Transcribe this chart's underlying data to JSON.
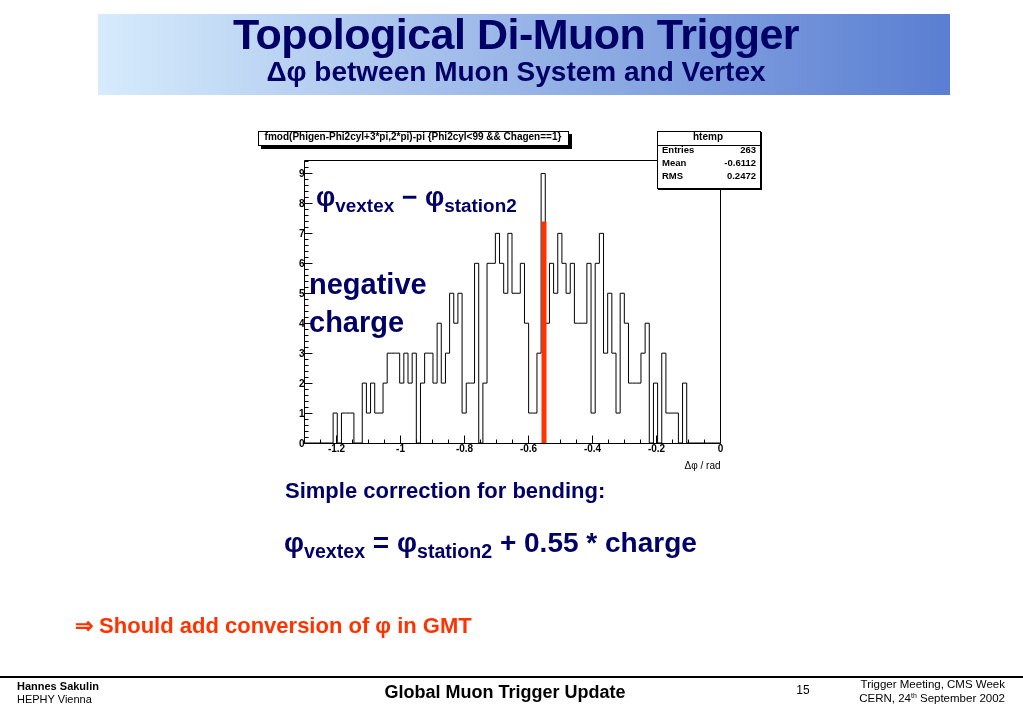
{
  "chart_data": {
    "type": "histogram",
    "title": "Topological Di-Muon Trigger",
    "subtitle": "Δφ between Muon System and Vertex",
    "xlabel": "Δφ / rad",
    "annotations": [
      "fmod(Phigen-Phi2cyl+3*pi,2*pi)-pi {Phi2cyl<99 && Chagen==1}",
      "htemp",
      "Entries",
      "263",
      "Mean",
      "-0.6112",
      "RMS",
      "0.2472",
      "φ$_{vextex}$ − φ$_{station2}$",
      "negative charge",
      "Simple correction for bending:",
      "φ$_{vextex}$ = φ$_{station2}$ + 0.55 * charge",
      "⇒ Should add conversion of φ in GMT",
      "Hannes Sakulin",
      "HEPHY Vienna",
      "Global Muon Trigger Update",
      "15",
      "Trigger Meeting, CMS Week",
      "CERN, 24$^{th}$ September 2002"
    ],
    "bins": [
      -1.3,
      -1.287,
      -1.274,
      -1.261,
      -1.248,
      -1.235,
      -1.222,
      -1.209,
      -1.196,
      -1.183,
      -1.17,
      -1.157,
      -1.144,
      -1.131,
      -1.118,
      -1.105,
      -1.092,
      -1.079,
      -1.066,
      -1.053,
      -1.04,
      -1.027,
      -1.014,
      -1.001,
      -0.988,
      -0.975,
      -0.962,
      -0.949,
      -0.936,
      -0.923,
      -0.91,
      -0.897,
      -0.884,
      -0.871,
      -0.858,
      -0.845,
      -0.832,
      -0.819,
      -0.806,
      -0.793,
      -0.78,
      -0.767,
      -0.754,
      -0.741,
      -0.728,
      -0.715,
      -0.702,
      -0.689,
      -0.676,
      -0.663,
      -0.65,
      -0.637,
      -0.624,
      -0.611,
      -0.598,
      -0.585,
      -0.572,
      -0.559,
      -0.546,
      -0.533,
      -0.52,
      -0.507,
      -0.494,
      -0.481,
      -0.468,
      -0.455,
      -0.442,
      -0.429,
      -0.416,
      -0.403,
      -0.39,
      -0.377,
      -0.364,
      -0.351,
      -0.338,
      -0.325,
      -0.312,
      -0.299,
      -0.286,
      -0.273,
      -0.26,
      -0.247,
      -0.234,
      -0.221,
      -0.208,
      -0.195,
      -0.182,
      -0.169,
      -0.156,
      -0.143,
      -0.13,
      -0.117,
      -0.104,
      -0.091,
      -0.078,
      -0.065,
      -0.052,
      -0.039,
      -0.026,
      -0.013,
      0
    ],
    "series": [
      {
        "type": "histogram",
        "color": "#000000",
        "values": [
          0,
          0,
          0,
          0,
          0,
          0,
          0,
          1,
          0,
          1,
          1,
          1,
          0,
          0,
          2,
          1,
          2,
          1,
          1,
          2,
          3,
          3,
          3,
          2,
          3,
          2,
          3,
          0,
          2,
          3,
          3,
          2,
          4,
          2,
          3,
          5,
          4,
          5,
          1,
          2,
          2,
          6,
          0,
          2,
          6,
          6,
          7,
          6,
          5,
          7,
          5,
          5,
          6,
          4,
          1,
          1,
          3,
          9,
          4,
          6,
          5,
          7,
          6,
          5,
          6,
          4,
          4,
          4,
          6,
          1,
          6,
          7,
          3,
          5,
          3,
          1,
          5,
          4,
          2,
          2,
          2,
          3,
          4,
          0,
          2,
          0,
          3,
          1,
          1,
          1,
          0,
          2,
          0,
          0,
          0,
          0,
          0,
          0,
          0,
          0
        ]
      },
      {
        "type": "line",
        "color": "#ff3300",
        "x": [
          -0.55,
          -0.55
        ],
        "values": [
          0,
          7.4
        ]
      }
    ],
    "xlim": [
      -1.3,
      0
    ],
    "ylim": [
      0,
      9.45
    ],
    "xticks": [
      {
        "value": -1.25,
        "label": null
      },
      -1.2,
      {
        "value": -1.15,
        "label": null
      },
      {
        "value": -1.1,
        "label": null
      },
      {
        "value": -1.05,
        "label": null
      },
      -1,
      {
        "value": -0.95,
        "label": null
      },
      {
        "value": -0.9,
        "label": null
      },
      {
        "value": -0.85,
        "label": null
      },
      -0.8,
      {
        "value": -0.75,
        "label": null
      },
      {
        "value": -0.7,
        "label": null
      },
      {
        "value": -0.65,
        "label": null
      },
      -0.6,
      {
        "value": -0.55,
        "label": null
      },
      {
        "value": -0.5,
        "label": null
      },
      {
        "value": -0.45,
        "label": null
      },
      -0.4,
      {
        "value": -0.35,
        "label": null
      },
      {
        "value": -0.3,
        "label": null
      },
      {
        "value": -0.25,
        "label": null
      },
      -0.2,
      {
        "value": -0.15,
        "label": null
      },
      {
        "value": -0.1,
        "label": null
      },
      {
        "value": -0.05,
        "label": null
      },
      0
    ],
    "yticks": [
      0,
      {
        "value": 0.2,
        "label": null
      },
      {
        "value": 0.4,
        "label": null
      },
      {
        "value": 0.6,
        "label": null
      },
      {
        "value": 0.8,
        "label": null
      },
      1,
      {
        "value": 1.2,
        "label": null
      },
      {
        "value": 1.4,
        "label": null
      },
      {
        "value": 1.6,
        "label": null
      },
      {
        "value": 1.8,
        "label": null
      },
      2,
      {
        "value": 2.2,
        "label": null
      },
      {
        "value": 2.4,
        "label": null
      },
      {
        "value": 2.6,
        "label": null
      },
      {
        "value": 2.8,
        "label": null
      },
      3,
      {
        "value": 3.2,
        "label": null
      },
      {
        "value": 3.4,
        "label": null
      },
      {
        "value": 3.6,
        "label": null
      },
      {
        "value": 3.8,
        "label": null
      },
      4,
      {
        "value": 4.2,
        "label": null
      },
      {
        "value": 4.4,
        "label": null
      },
      {
        "value": 4.6,
        "label": null
      },
      {
        "value": 4.8,
        "label": null
      },
      5,
      {
        "value": 5.2,
        "label": null
      },
      {
        "value": 5.4,
        "label": null
      },
      {
        "value": 5.6,
        "label": null
      },
      {
        "value": 5.8,
        "label": null
      },
      6,
      {
        "value": 6.2,
        "label": null
      },
      {
        "value": 6.4,
        "label": null
      },
      {
        "value": 6.6,
        "label": null
      },
      {
        "value": 6.8,
        "label": null
      },
      7,
      {
        "value": 7.2,
        "label": null
      },
      {
        "value": 7.4,
        "label": null
      },
      {
        "value": 7.6,
        "label": null
      },
      {
        "value": 7.8,
        "label": null
      },
      8,
      {
        "value": 8.2,
        "label": null
      },
      {
        "value": 8.4,
        "label": null
      },
      {
        "value": 8.6,
        "label": null
      },
      {
        "value": 8.8,
        "label": null
      },
      9,
      {
        "value": 9.2,
        "label": null
      },
      {
        "value": 9.4,
        "label": null
      }
    ]
  }
}
